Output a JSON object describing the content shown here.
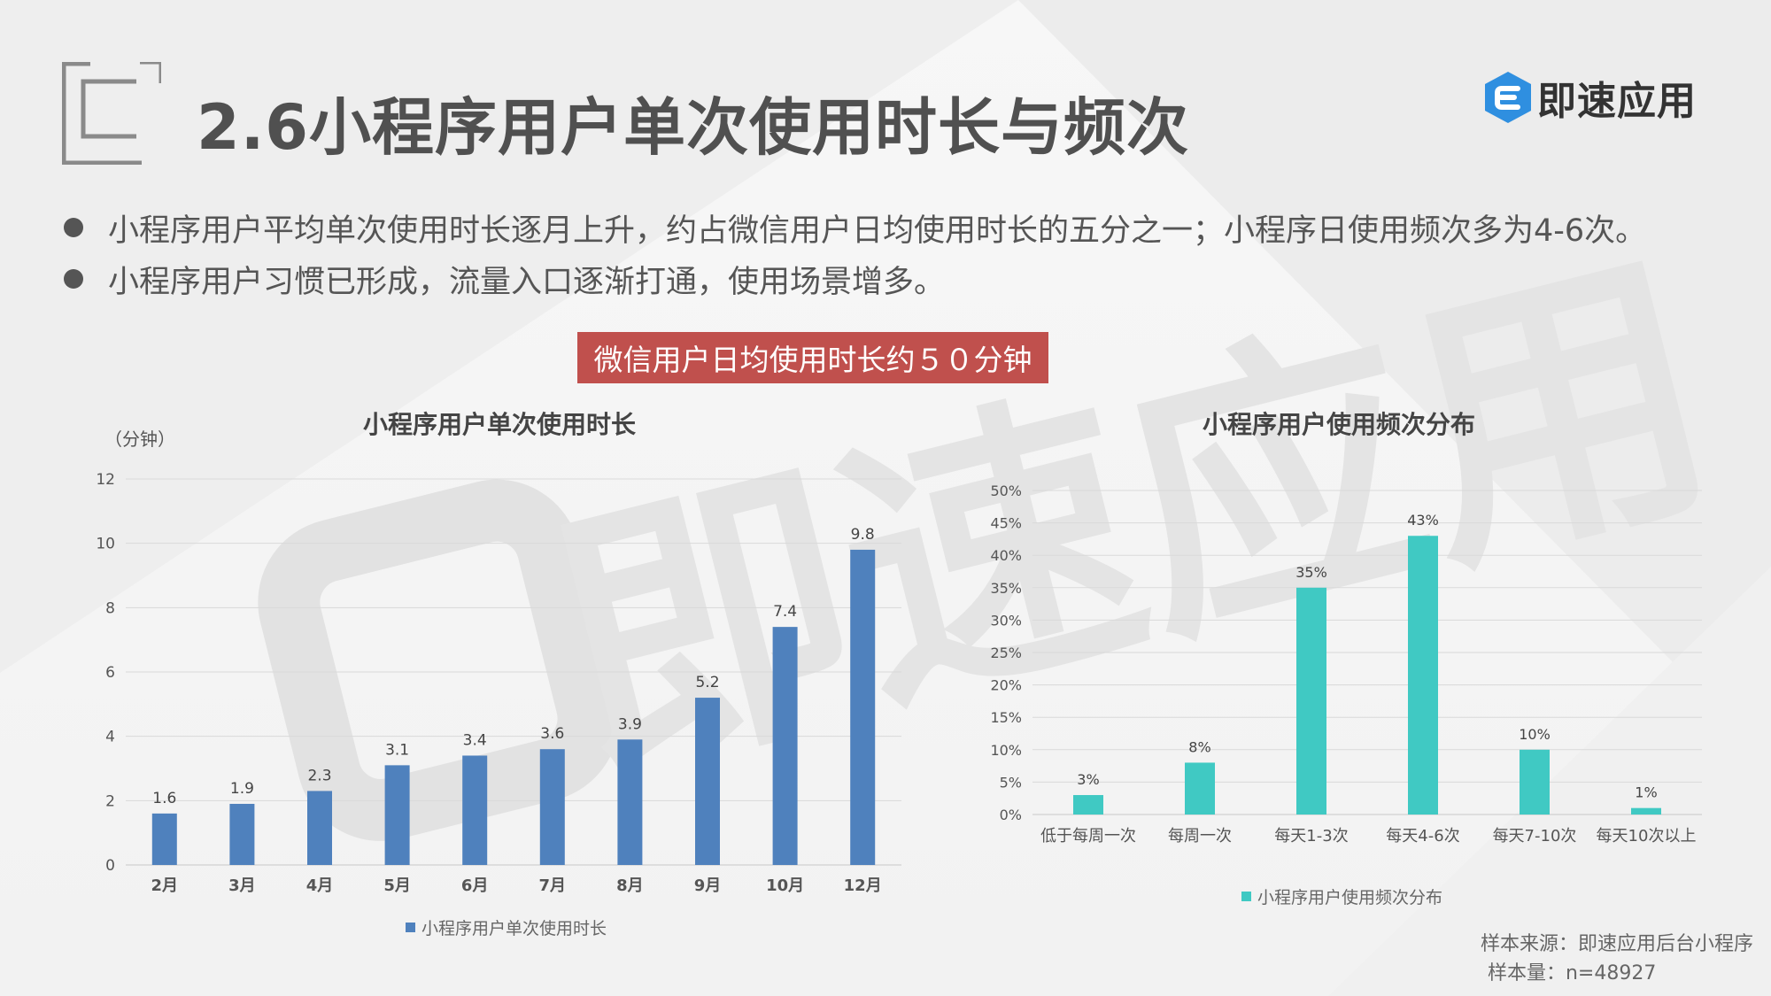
{
  "header": {
    "title": "2.6小程序用户单次使用时长与频次",
    "logo_text": "即速应用",
    "logo_icon": "e-hexagon-icon"
  },
  "watermark": {
    "text": "即速应用"
  },
  "bullets": [
    "小程序用户平均单次使用时长逐月上升，约占微信用户日均使用时长的五分之一；小程序日使用频次多为4-6次。",
    "小程序用户习惯已形成，流量入口逐渐打通，使用场景增多。"
  ],
  "highlight": "微信用户日均使用时长约５０分钟",
  "colors": {
    "bar_blue": "#4f81bd",
    "bar_teal": "#40c9c3",
    "highlight_red": "#c0504d"
  },
  "chart_data": [
    {
      "type": "bar",
      "title": "小程序用户单次使用时长",
      "ylabel": "（分钟）",
      "categories": [
        "2月",
        "3月",
        "4月",
        "5月",
        "6月",
        "7月",
        "8月",
        "9月",
        "10月",
        "12月"
      ],
      "series": [
        {
          "name": "小程序用户单次使用时长",
          "values": [
            1.6,
            1.9,
            2.3,
            3.1,
            3.4,
            3.6,
            3.9,
            5.2,
            7.4,
            9.8
          ]
        }
      ],
      "data_labels": [
        "1.6",
        "1.9",
        "2.3",
        "3.1",
        "3.4",
        "3.6",
        "3.9",
        "5.2",
        "7.4",
        "9.8"
      ],
      "ylim": [
        0,
        12
      ],
      "yticks": [
        "0",
        "2",
        "4",
        "6",
        "8",
        "10",
        "12"
      ],
      "grid": true,
      "legend": "bottom"
    },
    {
      "type": "bar",
      "title": "小程序用户使用频次分布",
      "categories": [
        "低于每周一次",
        "每周一次",
        "每天1-3次",
        "每天4-6次",
        "每天7-10次",
        "每天10次以上"
      ],
      "series": [
        {
          "name": "小程序用户使用频次分布",
          "values": [
            3,
            8,
            35,
            43,
            10,
            1
          ]
        }
      ],
      "data_labels": [
        "3%",
        "8%",
        "35%",
        "43%",
        "10%",
        "1%"
      ],
      "ylim": [
        0,
        50
      ],
      "yticks": [
        "0%",
        "5%",
        "10%",
        "15%",
        "20%",
        "25%",
        "30%",
        "35%",
        "40%",
        "45%",
        "50%"
      ],
      "grid": true,
      "legend": "bottom"
    }
  ],
  "source": {
    "line1": "样本来源：即速应用后台小程序",
    "line2": "样本量：n=48927"
  }
}
